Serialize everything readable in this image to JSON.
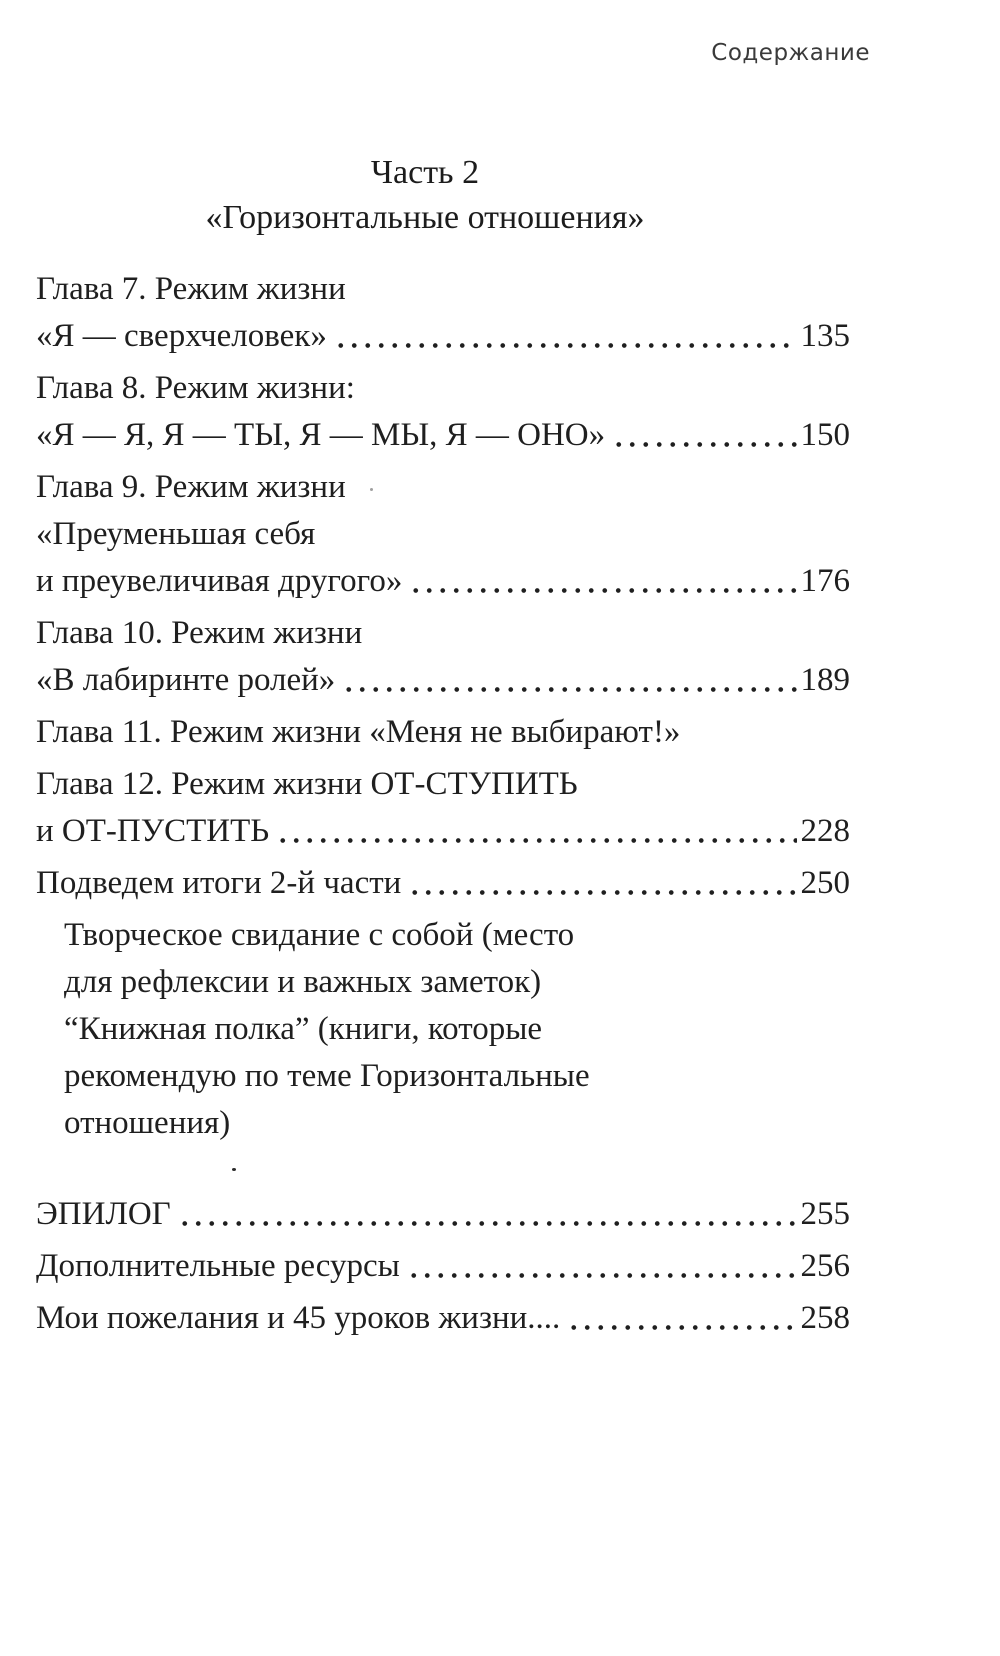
{
  "header": {
    "label": "Содержание"
  },
  "part": {
    "title": "Часть 2",
    "subtitle": "«Горизонтальные отношения»"
  },
  "toc_lines": [
    {
      "text": "Глава 7. Режим жизни",
      "entry_start": true
    },
    {
      "text": "«Я — сверхчеловек»",
      "page": "135"
    },
    {
      "text": "Глава 8. Режим жизни:",
      "entry_start": true
    },
    {
      "text": "«Я — Я, Я — ТЫ, Я — МЫ, Я — ОНО»",
      "page": "150"
    },
    {
      "text": "Глава 9. Режим жизни",
      "entry_start": true
    },
    {
      "text": "«Преуменьшая себя"
    },
    {
      "text": "и преувеличивая другого»",
      "page": "176"
    },
    {
      "text": "Глава 10. Режим жизни",
      "entry_start": true
    },
    {
      "text": "«В лабиринте ролей»",
      "page": "189"
    },
    {
      "text": "Глава 11. Режим жизни «Меня не выбирают!»",
      "entry_start": true
    },
    {
      "text": "Глава 12. Режим жизни ОТ-СТУПИТЬ",
      "entry_start": true
    },
    {
      "text": "и ОТ-ПУСТИТЬ",
      "page": "228"
    },
    {
      "text": "Подведем итоги 2-й части",
      "page": "250",
      "entry_start": true
    },
    {
      "text": "Творческое свидание с собой (место",
      "indent": true,
      "entry_start": true
    },
    {
      "text": "для рефлексии и важных заметок)",
      "indent": true
    },
    {
      "text": "“Книжная полка” (книги, которые",
      "indent": true
    },
    {
      "text": "рекомендую по теме Горизонтальные",
      "indent": true
    },
    {
      "text": "отношения)",
      "indent": true
    },
    {
      "text": "ЭПИЛОГ",
      "page": "255",
      "gap_before": true
    },
    {
      "text": "Дополнительные ресурсы",
      "page": "256",
      "entry_start": true
    },
    {
      "text": "Мои пожелания и 45 уроков жизни....",
      "page": "258",
      "entry_start": true
    }
  ],
  "colors": {
    "ink": "#1f1f1f",
    "paper": "#ffffff",
    "header_ink": "#3a3a3a"
  }
}
